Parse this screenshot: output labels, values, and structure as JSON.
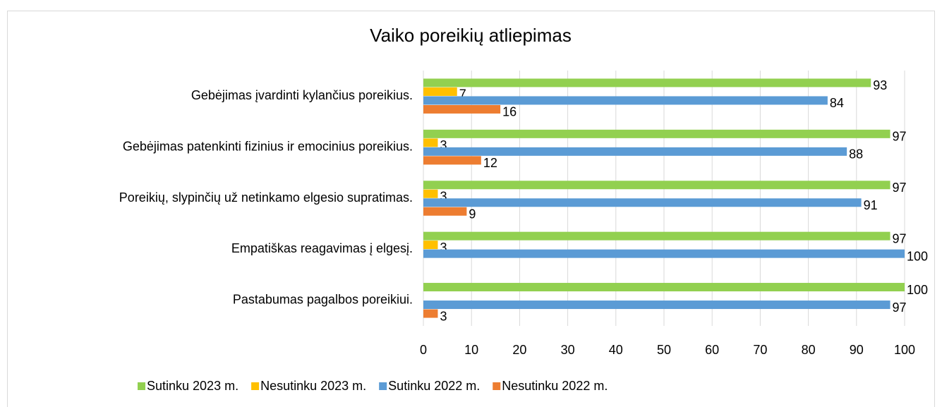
{
  "chart_data": {
    "type": "bar",
    "orientation": "horizontal",
    "title": "Vaiko poreikių atliepimas",
    "categories": [
      "Gebėjimas įvardinti kylančius poreikius.",
      "Gebėjimas patenkinti fizinius ir emocinius poreikius.",
      "Poreikių, slypinčių už netinkamo elgesio supratimas.",
      "Empatiškas reagavimas į elgesį.",
      "Pastabumas pagalbos poreikiui."
    ],
    "series": [
      {
        "name": "Sutinku 2023 m.",
        "color": "#92d050",
        "values": [
          93,
          97,
          97,
          97,
          100
        ]
      },
      {
        "name": "Nesutinku 2023 m.",
        "color": "#ffc000",
        "values": [
          7,
          3,
          3,
          3,
          null
        ]
      },
      {
        "name": "Sutinku 2022 m.",
        "color": "#5b9bd5",
        "values": [
          84,
          88,
          91,
          100,
          97
        ]
      },
      {
        "name": "Nesutinku 2022 m.",
        "color": "#ed7d31",
        "values": [
          16,
          12,
          9,
          null,
          3
        ]
      }
    ],
    "xlim": [
      0,
      100
    ],
    "xticks": [
      0,
      10,
      20,
      30,
      40,
      50,
      60,
      70,
      80,
      90,
      100
    ],
    "grid": true,
    "legend": "bottom"
  }
}
